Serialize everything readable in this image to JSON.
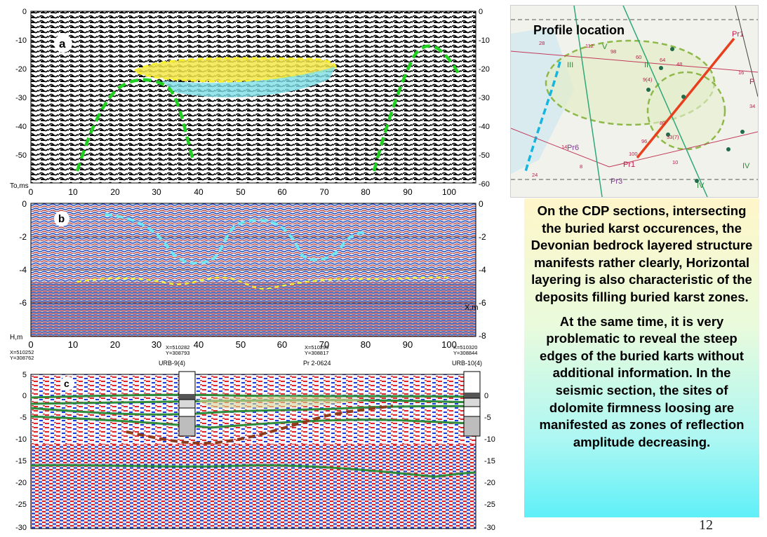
{
  "slide": {
    "number": "12",
    "map": {
      "title": "Profile location",
      "zone_labels": [
        "V",
        "III",
        "II",
        "IV",
        "IV"
      ],
      "profile_labels": [
        "Pr1",
        "Pr1",
        "Pr6",
        "Pr3",
        "P"
      ],
      "numbers": [
        "28",
        "112",
        "98",
        "60",
        "64",
        "48",
        "9(4)",
        "16",
        "34",
        "80",
        "33(7)",
        "96",
        "14",
        "24",
        "100",
        "8",
        "10"
      ]
    },
    "text_box": {
      "paragraph1": "On the CDP sections, intersecting the buried karst occurences, the Devonian bedrock layered structure manifests rather clearly, Horizontal layering is also characteristic of the  deposits filling  buried karst zones.",
      "paragraph2": "At the same time, it is very problematic to reveal the steep edges of the buried karts without additional information. In the seismic section,  the sites of dolomite firmness loosing  are  manifested as zones of reflection amplitude decreasing."
    },
    "panel_a": {
      "label": "a",
      "y_axis_title": "To,ms",
      "y_ticks": [
        "0",
        "-10",
        "-20",
        "-30",
        "-40",
        "-50"
      ],
      "y_ticks_right": [
        "0",
        "-10",
        "-20",
        "-30",
        "-40",
        "-50",
        "-60"
      ],
      "x_ticks": [
        "0",
        "10",
        "20",
        "30",
        "40",
        "50",
        "60",
        "70",
        "80",
        "90",
        "100"
      ]
    },
    "panel_b": {
      "label": "b",
      "y_axis_title": "H,m",
      "x_axis_title": "X,m",
      "y_ticks": [
        "0",
        "-2",
        "-4",
        "-6"
      ],
      "y_ticks_right": [
        "0",
        "-2",
        "-4",
        "-6",
        "-8"
      ],
      "x_ticks": [
        "0",
        "10",
        "20",
        "30",
        "40",
        "50",
        "60",
        "70",
        "80",
        "90",
        "100"
      ]
    },
    "wells": [
      {
        "coords_x": "X=510252",
        "coords_y": "Y=308762",
        "name": ""
      },
      {
        "coords_x": "X=510282",
        "coords_y": "Y=308793",
        "name": "URB-9(4)"
      },
      {
        "coords_x": "X=510299",
        "coords_y": "Y=308817",
        "name": "Pr 2-0624"
      },
      {
        "coords_x": "X=510320",
        "coords_y": "Y=308844",
        "name": "URB-10(4)"
      }
    ],
    "panel_c": {
      "label": "c",
      "y_ticks": [
        "5",
        "0",
        "-5",
        "-10",
        "-15",
        "-20",
        "-25",
        "-30"
      ],
      "y_ticks_right": [
        "0",
        "-5",
        "-10",
        "-15",
        "-20",
        "-25",
        "-30"
      ]
    },
    "colors": {
      "karst_yellow": "#f4e84a",
      "karst_cyan": "#7fe0e8",
      "boundary_green": "#1fd11f",
      "horizon_green": "#2e8b3a",
      "karst_brown": "#8b3a1a",
      "profile_red": "#e8401e"
    }
  }
}
